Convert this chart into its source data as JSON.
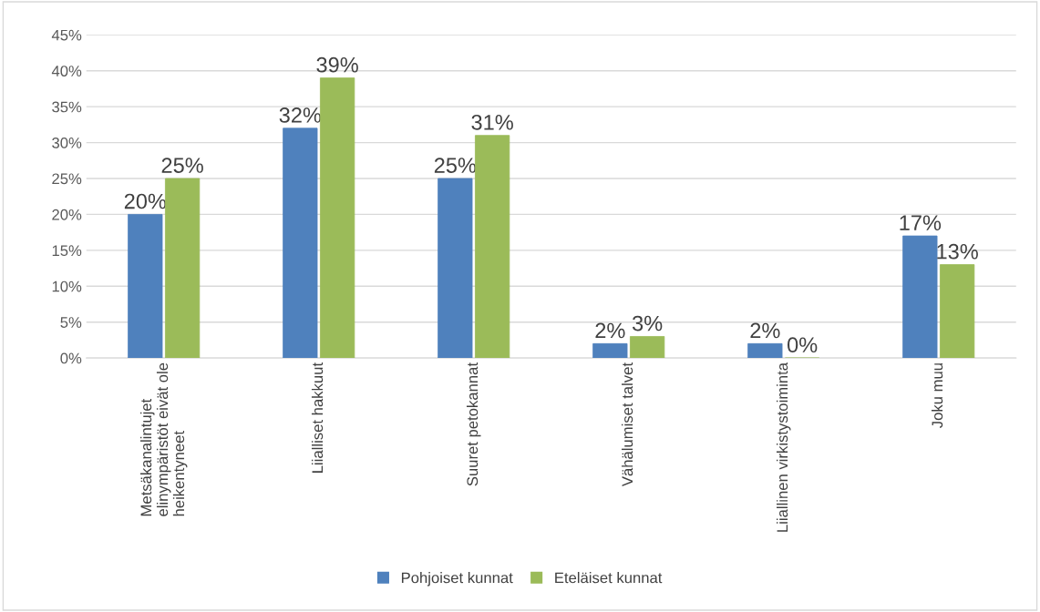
{
  "chart_data": {
    "type": "bar",
    "categories": [
      "Metsäkanalintujet\nelinympäristöt eivät ole\nheikentyneet",
      "Liialliset hakkuut",
      "Suuret petokannat",
      "Vähälumiset talvet",
      "Liiallinen virkistystoiminta",
      "Joku muu"
    ],
    "series": [
      {
        "name": "Pohjoiset kunnat",
        "color": "#4f81bd",
        "values": [
          20,
          32,
          25,
          2,
          2,
          17
        ],
        "value_labels": [
          "20%",
          "32%",
          "25%",
          "2%",
          "2%",
          "17%"
        ]
      },
      {
        "name": "Eteläiset kunnat",
        "color": "#9bbb59",
        "values": [
          25,
          39,
          31,
          3,
          0,
          13
        ],
        "value_labels": [
          "25%",
          "39%",
          "31%",
          "3%",
          "0%",
          "13%"
        ]
      }
    ],
    "ylim": [
      0,
      45
    ],
    "yticks": [
      {
        "value": 0,
        "label": "0%"
      },
      {
        "value": 5,
        "label": "5%"
      },
      {
        "value": 10,
        "label": "10%"
      },
      {
        "value": 15,
        "label": "15%"
      },
      {
        "value": 20,
        "label": "20%"
      },
      {
        "value": 25,
        "label": "25%"
      },
      {
        "value": 30,
        "label": "30%"
      },
      {
        "value": 35,
        "label": "35%"
      },
      {
        "value": 40,
        "label": "40%"
      },
      {
        "value": 45,
        "label": "45%"
      }
    ],
    "grid": "y",
    "legend": "bottom"
  }
}
